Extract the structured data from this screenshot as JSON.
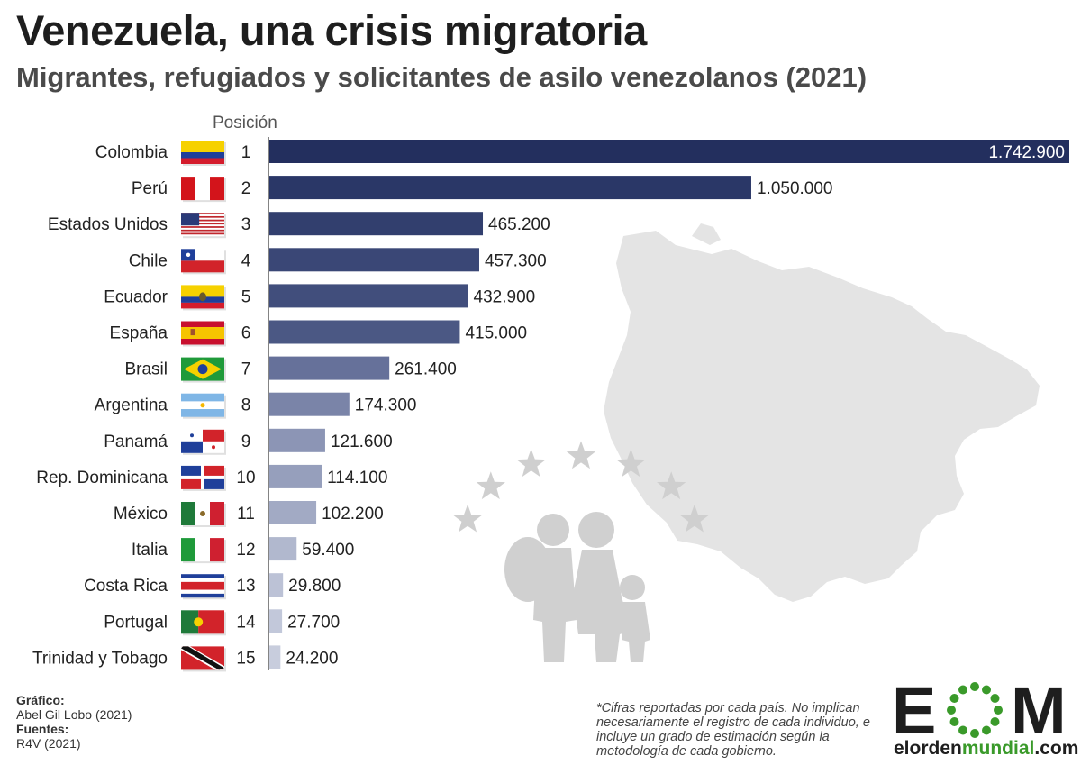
{
  "header": {
    "title": "Venezuela, una crisis migratoria",
    "subtitle": "Migrantes, refugiados y solicitantes de asilo venezolanos (2021)",
    "position_label": "Posición"
  },
  "chart_data": {
    "type": "bar",
    "orientation": "horizontal",
    "categories": [
      "Colombia",
      "Perú",
      "Estados Unidos",
      "Chile",
      "Ecuador",
      "España",
      "Brasil",
      "Argentina",
      "Panamá",
      "Rep. Dominicana",
      "México",
      "Italia",
      "Costa Rica",
      "Portugal",
      "Trinidad y Tobago"
    ],
    "positions": [
      "1",
      "2",
      "3",
      "4",
      "5",
      "6",
      "7",
      "8",
      "9",
      "10",
      "11",
      "12",
      "13",
      "14",
      "15"
    ],
    "values": [
      1742900,
      1050000,
      465200,
      457300,
      432900,
      415000,
      261400,
      174300,
      121600,
      114100,
      102200,
      59400,
      29800,
      27700,
      24200
    ],
    "value_labels": [
      "1.742.900",
      "1.050.000",
      "465.200",
      "457.300",
      "432.900",
      "415.000",
      "261.400",
      "174.300",
      "121.600",
      "114.100",
      "102.200",
      "59.400",
      "29.800",
      "27.700",
      "24.200"
    ],
    "bar_colors": [
      "#232f5e",
      "#2a3767",
      "#323f6e",
      "#3a4776",
      "#414e7c",
      "#4b5884",
      "#66719a",
      "#7a84a8",
      "#8c95b5",
      "#969fbc",
      "#a2aac4",
      "#b1b8ce",
      "#bcc2d6",
      "#c2c8da",
      "#c8cddd"
    ],
    "flags": [
      "colombia-flag",
      "peru-flag",
      "usa-flag",
      "chile-flag",
      "ecuador-flag",
      "spain-flag",
      "brazil-flag",
      "argentina-flag",
      "panama-flag",
      "dominican-republic-flag",
      "mexico-flag",
      "italy-flag",
      "costa-rica-flag",
      "portugal-flag",
      "trinidad-tobago-flag"
    ],
    "xlim": [
      0,
      1742900
    ],
    "grid": false,
    "legend": "none"
  },
  "background_icons": [
    "venezuela-map-silhouette",
    "stars-arc",
    "migrant-family-icon"
  ],
  "credits": {
    "graphic_label": "Gráfico:",
    "graphic_author": "Abel Gil Lobo (2021)",
    "sources_label": "Fuentes:",
    "sources": "R4V (2021)"
  },
  "footnote": "*Cifras reportadas por cada país. No implican necesariamente el registro de cada individuo, e incluye un grado de estimación según la metodología de cada gobierno.",
  "logo": {
    "text": "EOM",
    "site_prefix": "elorden",
    "site_mid": "mundial",
    "site_suffix": ".com",
    "colors": {
      "dark": "#1e1e1e",
      "green": "#3a9a2a"
    }
  }
}
